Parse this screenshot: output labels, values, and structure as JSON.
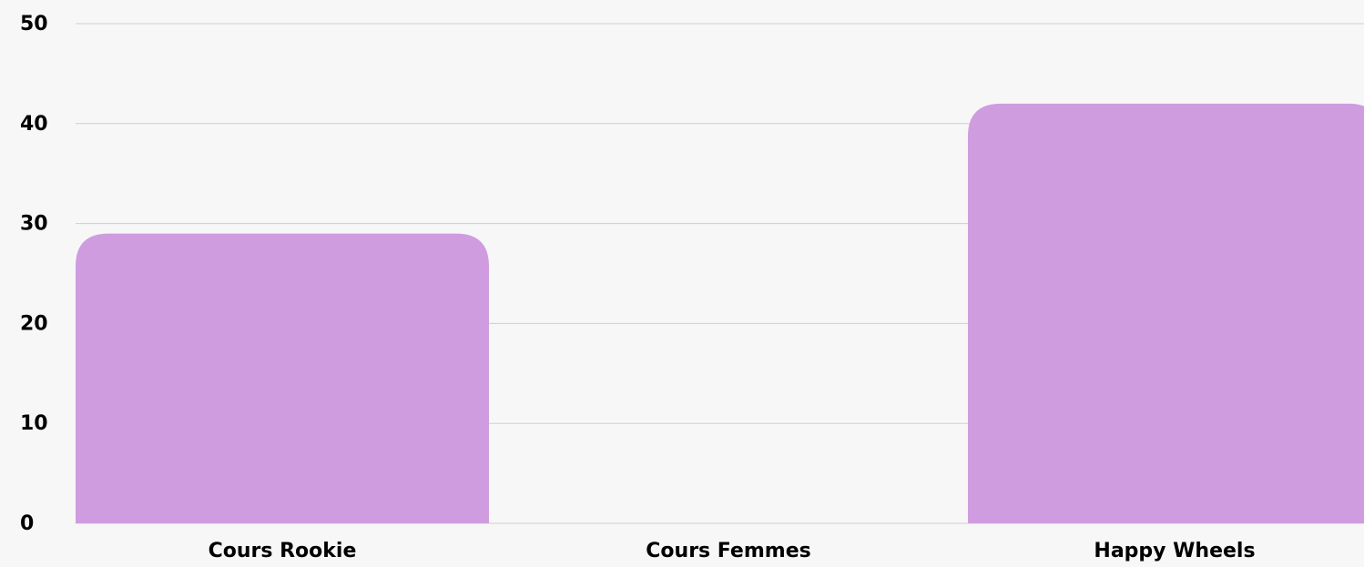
{
  "chart_data": {
    "type": "bar",
    "categories": [
      "Cours Rookie",
      "Cours Femmes",
      "Happy Wheels"
    ],
    "values": [
      29,
      0,
      42
    ],
    "color": "#cf9ddf",
    "ylim": [
      0,
      50
    ],
    "yticks": [
      0,
      10,
      20,
      30,
      40,
      50
    ],
    "grid": true
  }
}
